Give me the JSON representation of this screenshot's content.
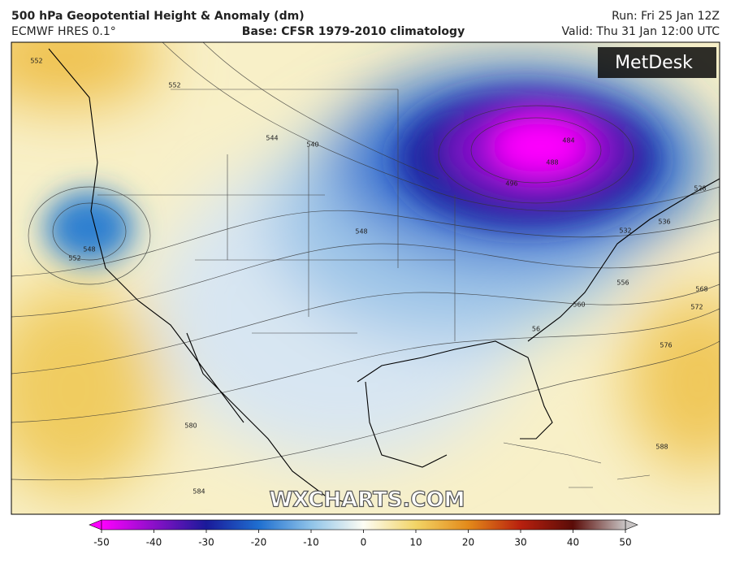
{
  "header": {
    "title": "500 hPa Geopotential Height & Anomaly (dm)",
    "model": "ECMWF HRES 0.1°",
    "base": "Base: CFSR 1979-2010 climatology",
    "run": "Run: Fri 25 Jan 12Z",
    "valid": "Valid: Thu 31 Jan 12:00 UTC"
  },
  "map": {
    "logo": "MetDesk",
    "watermark": "WXCHARTS.COM",
    "contour_labels": [
      552,
      552,
      544,
      540,
      548,
      552,
      548,
      484,
      488,
      496,
      528,
      536,
      532,
      556,
      560,
      568,
      572,
      576,
      580,
      584,
      588,
      56
    ]
  },
  "colorbar": {
    "range": [
      -50,
      50
    ],
    "ticks": [
      -50,
      -40,
      -30,
      -20,
      -10,
      0,
      10,
      20,
      30,
      40,
      50
    ]
  }
}
